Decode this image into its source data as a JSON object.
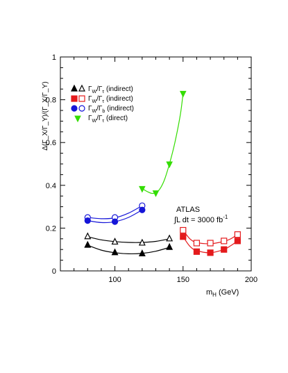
{
  "chart_data": {
    "type": "scatter",
    "xlabel_main": "m",
    "xlabel_sub": "H",
    "xlabel_unit": " (GeV)",
    "ylabel": "Δ(Γ_X/Γ_Y)/(Γ_X/Γ_Y)",
    "xlim": [
      60,
      200
    ],
    "ylim": [
      0,
      1
    ],
    "x_ticks": [
      "100",
      "150",
      "200"
    ],
    "y_ticks": [
      "0",
      "0.2",
      "0.4",
      "0.6",
      "0.8",
      "1"
    ],
    "annotation": {
      "line1": "ATLAS",
      "line2_prefix": "∫L dt = 3000 fb",
      "line2_sup": "-1"
    },
    "legend": [
      {
        "ratio_top": "W",
        "ratio_bot": "τ",
        "note": " (indirect)",
        "markers": "filled+open triangle-up"
      },
      {
        "ratio_top": "W",
        "ratio_bot": "τ",
        "note": " (indirect)",
        "markers": "filled+open square"
      },
      {
        "ratio_top": "W",
        "ratio_bot": "b",
        "note": " (indirect)",
        "markers": "filled+open circle"
      },
      {
        "ratio_top": "W",
        "ratio_bot": "τ",
        "note": " (direct)",
        "markers": "filled triangle-down"
      }
    ],
    "series": [
      {
        "name": "Γ_W/Γ_τ (indirect) open",
        "marker": "tri-up-open",
        "color": "#000000",
        "x": [
          80,
          100,
          120,
          140
        ],
        "y": [
          0.16,
          0.135,
          0.13,
          0.15
        ]
      },
      {
        "name": "Γ_W/Γ_τ (indirect) filled",
        "marker": "tri-up-filled",
        "color": "#000000",
        "x": [
          80,
          100,
          120,
          140
        ],
        "y": [
          0.12,
          0.085,
          0.08,
          0.11
        ]
      },
      {
        "name": "Γ_W/Γ_τ (indirect) open",
        "marker": "sq-open",
        "color": "#e41a1c",
        "x": [
          150,
          160,
          170,
          180,
          190
        ],
        "y": [
          0.19,
          0.13,
          0.13,
          0.14,
          0.17
        ]
      },
      {
        "name": "Γ_W/Γ_τ (indirect) filled",
        "marker": "sq-filled",
        "color": "#e41a1c",
        "x": [
          150,
          160,
          170,
          180,
          190
        ],
        "y": [
          0.16,
          0.09,
          0.085,
          0.1,
          0.14
        ]
      },
      {
        "name": "Γ_W/Γ_b (indirect) open",
        "marker": "circ-open",
        "color": "#1515d8",
        "x": [
          80,
          100,
          120
        ],
        "y": [
          0.25,
          0.25,
          0.305
        ]
      },
      {
        "name": "Γ_W/Γ_b (indirect) filled",
        "marker": "circ-filled",
        "color": "#1515d8",
        "x": [
          80,
          100,
          120
        ],
        "y": [
          0.235,
          0.23,
          0.285
        ]
      },
      {
        "name": "Γ_W/Γ_τ (direct)",
        "marker": "tri-down-filled",
        "color": "#33dd00",
        "x": [
          120,
          130,
          140,
          150
        ],
        "y": [
          0.385,
          0.365,
          0.5,
          0.83
        ]
      }
    ],
    "fit_curves": [
      {
        "color": "#000000",
        "x": [
          80,
          90,
          100,
          110,
          120,
          130,
          140
        ],
        "y": [
          0.16,
          0.145,
          0.137,
          0.133,
          0.133,
          0.138,
          0.15
        ]
      },
      {
        "color": "#000000",
        "x": [
          80,
          90,
          100,
          110,
          120,
          130,
          140
        ],
        "y": [
          0.12,
          0.097,
          0.085,
          0.08,
          0.082,
          0.092,
          0.11
        ]
      },
      {
        "color": "#e41a1c",
        "x": [
          150,
          155,
          160,
          170,
          180,
          185,
          190
        ],
        "y": [
          0.19,
          0.15,
          0.133,
          0.127,
          0.138,
          0.15,
          0.17
        ]
      },
      {
        "color": "#e41a1c",
        "x": [
          150,
          155,
          160,
          170,
          180,
          185,
          190
        ],
        "y": [
          0.16,
          0.115,
          0.095,
          0.085,
          0.1,
          0.118,
          0.14
        ]
      },
      {
        "color": "#1515d8",
        "x": [
          80,
          90,
          100,
          110,
          120
        ],
        "y": [
          0.25,
          0.244,
          0.248,
          0.27,
          0.305
        ]
      },
      {
        "color": "#1515d8",
        "x": [
          80,
          90,
          100,
          110,
          120
        ],
        "y": [
          0.235,
          0.226,
          0.23,
          0.25,
          0.285
        ]
      },
      {
        "color": "#33dd00",
        "x": [
          120,
          124,
          128,
          132,
          136,
          140,
          144,
          148,
          150
        ],
        "y": [
          0.385,
          0.37,
          0.362,
          0.375,
          0.42,
          0.5,
          0.6,
          0.73,
          0.83
        ]
      }
    ]
  }
}
